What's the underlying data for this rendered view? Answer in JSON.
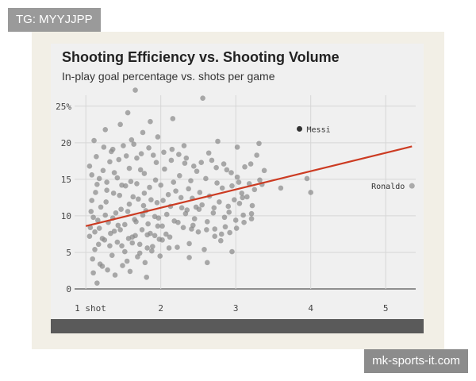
{
  "watermark_top": "TG: MYYJJPP",
  "watermark_bottom": "mk-sports-it.com",
  "chart_data": {
    "type": "scatter",
    "title": "Shooting Efficiency vs. Shooting Volume",
    "subtitle": "In-play goal percentage vs. shots per game",
    "xlabel": "",
    "ylabel": "",
    "xlim": [
      0.85,
      5.4
    ],
    "ylim": [
      0,
      26.5
    ],
    "x_ticks": [
      {
        "value": 1,
        "label": "1 shot"
      },
      {
        "value": 2,
        "label": "2"
      },
      {
        "value": 3,
        "label": "3"
      },
      {
        "value": 4,
        "label": "4"
      },
      {
        "value": 5,
        "label": "5"
      }
    ],
    "y_ticks": [
      {
        "value": 0,
        "label": "0"
      },
      {
        "value": 5,
        "label": "5"
      },
      {
        "value": 10,
        "label": "10"
      },
      {
        "value": 15,
        "label": "15"
      },
      {
        "value": 20,
        "label": "20"
      },
      {
        "value": 25,
        "label": "25%"
      }
    ],
    "grid": true,
    "trend_line": {
      "x": [
        1,
        5.35
      ],
      "y": [
        8.6,
        19.5
      ],
      "color": "#cc3b22"
    },
    "highlighted": [
      {
        "name": "Messi",
        "x": 3.85,
        "y": 21.9,
        "label_side": "right",
        "color": "#333333"
      },
      {
        "name": "Ronaldo",
        "x": 5.35,
        "y": 14.1,
        "label_side": "left",
        "color": "#aaaaaa"
      }
    ],
    "point_color": "#8a8a8a",
    "points": [
      [
        1.05,
        7.2
      ],
      [
        1.1,
        9.8
      ],
      [
        1.08,
        12.1
      ],
      [
        1.12,
        5.4
      ],
      [
        1.15,
        14.3
      ],
      [
        1.05,
        16.8
      ],
      [
        1.2,
        11.2
      ],
      [
        1.18,
        8.3
      ],
      [
        1.22,
        3.1
      ],
      [
        1.1,
        2.2
      ],
      [
        1.15,
        0.8
      ],
      [
        1.25,
        6.7
      ],
      [
        1.28,
        13.5
      ],
      [
        1.3,
        9.1
      ],
      [
        1.35,
        4.6
      ],
      [
        1.32,
        17.4
      ],
      [
        1.4,
        10.4
      ],
      [
        1.38,
        7.9
      ],
      [
        1.42,
        15.2
      ],
      [
        1.45,
        12.8
      ],
      [
        1.48,
        5.9
      ],
      [
        1.5,
        19.6
      ],
      [
        1.52,
        8.8
      ],
      [
        1.55,
        3.8
      ],
      [
        1.58,
        11.6
      ],
      [
        1.6,
        14.7
      ],
      [
        1.62,
        6.3
      ],
      [
        1.65,
        9.5
      ],
      [
        1.68,
        17.9
      ],
      [
        1.7,
        12.3
      ],
      [
        1.72,
        4.9
      ],
      [
        1.75,
        8.1
      ],
      [
        1.78,
        15.8
      ],
      [
        1.8,
        10.7
      ],
      [
        1.82,
        7.4
      ],
      [
        1.85,
        13.9
      ],
      [
        1.88,
        5.2
      ],
      [
        1.9,
        18.3
      ],
      [
        1.92,
        9.9
      ],
      [
        1.95,
        11.8
      ],
      [
        1.98,
        6.8
      ],
      [
        2.0,
        14.2
      ],
      [
        2.02,
        8.6
      ],
      [
        2.05,
        16.4
      ],
      [
        2.08,
        10.2
      ],
      [
        2.1,
        12.9
      ],
      [
        2.12,
        7.1
      ],
      [
        2.15,
        19.1
      ],
      [
        2.18,
        9.3
      ],
      [
        2.2,
        13.4
      ],
      [
        2.22,
        5.7
      ],
      [
        2.25,
        15.5
      ],
      [
        2.28,
        11.1
      ],
      [
        2.3,
        8.4
      ],
      [
        2.32,
        17.2
      ],
      [
        2.35,
        10.8
      ],
      [
        2.38,
        6.2
      ],
      [
        2.4,
        14.8
      ],
      [
        2.42,
        12.4
      ],
      [
        2.45,
        9.6
      ],
      [
        2.48,
        16.1
      ],
      [
        2.5,
        7.8
      ],
      [
        2.52,
        13.2
      ],
      [
        2.55,
        11.5
      ],
      [
        2.58,
        5.4
      ],
      [
        2.6,
        15.1
      ],
      [
        2.62,
        9.2
      ],
      [
        2.65,
        12.7
      ],
      [
        2.68,
        17.6
      ],
      [
        2.7,
        10.4
      ],
      [
        2.72,
        8.2
      ],
      [
        2.75,
        14.5
      ],
      [
        2.78,
        11.9
      ],
      [
        2.8,
        6.6
      ],
      [
        2.82,
        13.8
      ],
      [
        2.85,
        9.8
      ],
      [
        2.88,
        16.3
      ],
      [
        2.9,
        11.3
      ],
      [
        2.92,
        7.7
      ],
      [
        2.95,
        14.1
      ],
      [
        2.98,
        12.2
      ],
      [
        3.0,
        9.4
      ],
      [
        3.02,
        15.3
      ],
      [
        3.05,
        11.7
      ],
      [
        3.08,
        13.1
      ],
      [
        3.1,
        10.1
      ],
      [
        3.12,
        16.7
      ],
      [
        3.15,
        12.6
      ],
      [
        3.18,
        14.4
      ],
      [
        3.2,
        17.1
      ],
      [
        3.22,
        11.4
      ],
      [
        3.25,
        13.6
      ],
      [
        3.28,
        18.3
      ],
      [
        3.32,
        14.9
      ],
      [
        3.38,
        16.2
      ],
      [
        1.07,
        10.6
      ],
      [
        1.13,
        13.2
      ],
      [
        1.17,
        6.1
      ],
      [
        1.23,
        16.2
      ],
      [
        1.27,
        11.9
      ],
      [
        1.33,
        7.6
      ],
      [
        1.37,
        13.1
      ],
      [
        1.43,
        8.7
      ],
      [
        1.47,
        10.9
      ],
      [
        1.53,
        14.1
      ],
      [
        1.57,
        6.9
      ],
      [
        1.63,
        12.6
      ],
      [
        1.67,
        9.2
      ],
      [
        1.73,
        16.3
      ],
      [
        1.77,
        11.4
      ],
      [
        1.83,
        8.9
      ],
      [
        1.87,
        12.2
      ],
      [
        1.93,
        14.9
      ],
      [
        1.97,
        9.7
      ],
      [
        2.03,
        12.1
      ],
      [
        2.07,
        7.5
      ],
      [
        2.13,
        11.3
      ],
      [
        2.17,
        14.6
      ],
      [
        2.23,
        9.1
      ],
      [
        2.27,
        12.5
      ],
      [
        2.33,
        10.3
      ],
      [
        2.37,
        13.7
      ],
      [
        2.43,
        8.7
      ],
      [
        2.47,
        11.2
      ],
      [
        1.09,
        4.1
      ],
      [
        1.19,
        3.4
      ],
      [
        1.29,
        2.6
      ],
      [
        1.39,
        1.9
      ],
      [
        1.49,
        3.2
      ],
      [
        1.59,
        2.4
      ],
      [
        1.69,
        4.4
      ],
      [
        1.79,
        3.6
      ],
      [
        1.89,
        5.8
      ],
      [
        1.99,
        4.5
      ],
      [
        1.11,
        20.3
      ],
      [
        1.26,
        21.8
      ],
      [
        1.46,
        22.5
      ],
      [
        1.56,
        24.1
      ],
      [
        1.66,
        27.2
      ],
      [
        1.76,
        21.4
      ],
      [
        1.86,
        22.9
      ],
      [
        2.16,
        23.3
      ],
      [
        2.56,
        26.1
      ],
      [
        1.36,
        19.1
      ],
      [
        1.61,
        20.4
      ],
      [
        1.96,
        20.8
      ],
      [
        2.31,
        19.6
      ],
      [
        2.76,
        20.2
      ],
      [
        3.02,
        19.4
      ],
      [
        3.31,
        19.9
      ],
      [
        3.09,
        12.5
      ],
      [
        3.21,
        10.3
      ],
      [
        3.35,
        14.3
      ],
      [
        2.86,
        8.5
      ],
      [
        2.95,
        5.1
      ],
      [
        2.62,
        3.6
      ],
      [
        2.38,
        4.3
      ],
      [
        2.72,
        7.2
      ],
      [
        2.11,
        5.6
      ],
      [
        1.81,
        1.6
      ],
      [
        1.14,
        18.1
      ],
      [
        1.24,
        19.4
      ],
      [
        1.34,
        18.8
      ],
      [
        1.44,
        17.7
      ],
      [
        1.54,
        18.2
      ],
      [
        1.64,
        19.8
      ],
      [
        1.74,
        18.5
      ],
      [
        1.84,
        19.3
      ],
      [
        1.94,
        17.3
      ],
      [
        2.04,
        18.7
      ],
      [
        2.14,
        17.6
      ],
      [
        2.24,
        18.4
      ],
      [
        2.34,
        17.9
      ],
      [
        2.44,
        16.8
      ],
      [
        2.54,
        17.3
      ],
      [
        2.64,
        18.6
      ],
      [
        2.74,
        16.6
      ],
      [
        2.84,
        17.1
      ],
      [
        2.94,
        15.9
      ],
      [
        3.04,
        14.6
      ],
      [
        1.06,
        8.4
      ],
      [
        1.16,
        9.4
      ],
      [
        1.26,
        10.1
      ],
      [
        1.36,
        9.7
      ],
      [
        1.46,
        8.1
      ],
      [
        1.56,
        10.6
      ],
      [
        1.66,
        7.3
      ],
      [
        1.76,
        10.1
      ],
      [
        1.86,
        7.6
      ],
      [
        1.96,
        8.6
      ],
      [
        3.6,
        13.8
      ],
      [
        3.95,
        15.1
      ],
      [
        4.0,
        13.2
      ],
      [
        2.41,
        8.2
      ],
      [
        2.51,
        10.9
      ],
      [
        2.61,
        8.1
      ],
      [
        2.71,
        11.1
      ],
      [
        2.81,
        7.5
      ],
      [
        2.91,
        10.5
      ],
      [
        3.01,
        8.3
      ],
      [
        3.11,
        9.1
      ],
      [
        3.21,
        9.6
      ],
      [
        1.08,
        15.6
      ],
      [
        1.18,
        15.1
      ],
      [
        1.28,
        14.6
      ],
      [
        1.38,
        15.9
      ],
      [
        1.48,
        14.2
      ],
      [
        1.58,
        16.5
      ],
      [
        1.68,
        14.4
      ],
      [
        1.78,
        13.1
      ],
      [
        1.12,
        7.8
      ],
      [
        1.22,
        6.9
      ],
      [
        1.32,
        5.9
      ],
      [
        1.42,
        6.4
      ],
      [
        1.52,
        5.1
      ],
      [
        1.62,
        7.1
      ],
      [
        1.72,
        6.1
      ],
      [
        1.82,
        5.6
      ],
      [
        1.92,
        7.3
      ],
      [
        2.02,
        6.7
      ]
    ]
  }
}
